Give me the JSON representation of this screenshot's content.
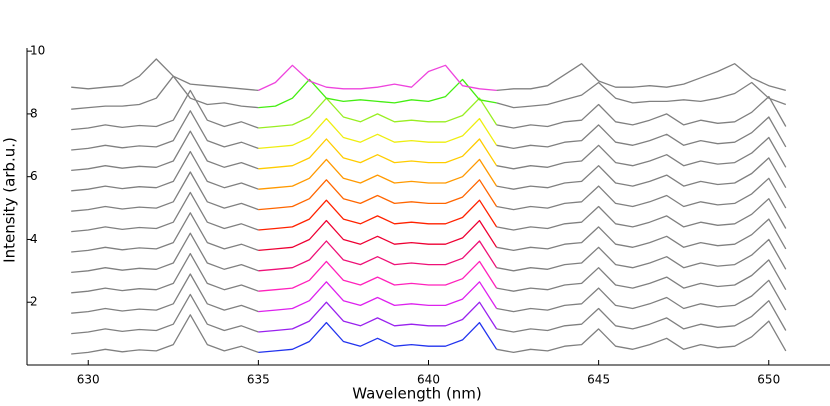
{
  "chart_data": {
    "type": "line",
    "xlabel": "Wavelength (nm)",
    "ylabel": "Intensity (arb.u.)",
    "xlim": [
      628.2,
      651.8
    ],
    "ylim": [
      0,
      10.1
    ],
    "xticks": [
      630,
      635,
      640,
      645,
      650
    ],
    "yticks": [
      2,
      4,
      6,
      8,
      10
    ],
    "highlight_xlim": [
      635,
      642
    ],
    "x": [
      629.5,
      630,
      630.5,
      631,
      631.5,
      632,
      632.5,
      633,
      633.5,
      634,
      634.5,
      635,
      635.5,
      636,
      636.5,
      637,
      637.5,
      638,
      638.5,
      639,
      639.5,
      640,
      640.5,
      641,
      641.5,
      642,
      642.5,
      643,
      643.5,
      644,
      644.5,
      645,
      645.5,
      646,
      646.5,
      647,
      647.5,
      648,
      648.5,
      649,
      649.5,
      650,
      650.5
    ],
    "series": [
      {
        "color": "#808080",
        "highlight_color": "#2233ee",
        "values": [
          0.35,
          0.4,
          0.5,
          0.42,
          0.48,
          0.45,
          0.65,
          1.6,
          0.65,
          0.45,
          0.6,
          0.4,
          0.45,
          0.5,
          0.75,
          1.35,
          0.75,
          0.6,
          0.85,
          0.6,
          0.65,
          0.6,
          0.6,
          0.8,
          1.35,
          0.5,
          0.4,
          0.5,
          0.45,
          0.6,
          0.65,
          1.15,
          0.6,
          0.5,
          0.65,
          0.85,
          0.5,
          0.65,
          0.55,
          0.6,
          0.9,
          1.4,
          0.45
        ]
      },
      {
        "color": "#808080",
        "highlight_color": "#9922ee",
        "values": [
          1.0,
          1.05,
          1.15,
          1.07,
          1.13,
          1.1,
          1.3,
          2.25,
          1.3,
          1.1,
          1.25,
          1.05,
          1.1,
          1.15,
          1.4,
          2.0,
          1.4,
          1.25,
          1.5,
          1.25,
          1.3,
          1.25,
          1.25,
          1.45,
          2.0,
          1.15,
          1.05,
          1.15,
          1.1,
          1.25,
          1.3,
          1.8,
          1.25,
          1.15,
          1.3,
          1.5,
          1.15,
          1.3,
          1.2,
          1.25,
          1.55,
          2.05,
          1.1
        ]
      },
      {
        "color": "#808080",
        "highlight_color": "#dd22ee",
        "values": [
          1.65,
          1.7,
          1.8,
          1.72,
          1.78,
          1.75,
          1.95,
          2.9,
          1.95,
          1.75,
          1.9,
          1.7,
          1.75,
          1.8,
          2.05,
          2.65,
          2.05,
          1.9,
          2.15,
          1.9,
          1.95,
          1.9,
          1.9,
          2.1,
          2.65,
          1.8,
          1.7,
          1.8,
          1.75,
          1.9,
          1.95,
          2.45,
          1.9,
          1.8,
          1.95,
          2.15,
          1.8,
          1.95,
          1.85,
          1.9,
          2.2,
          2.7,
          1.75
        ]
      },
      {
        "color": "#808080",
        "highlight_color": "#ff22bb",
        "values": [
          2.3,
          2.35,
          2.45,
          2.37,
          2.43,
          2.4,
          2.6,
          3.55,
          2.6,
          2.4,
          2.55,
          2.35,
          2.4,
          2.45,
          2.7,
          3.3,
          2.7,
          2.55,
          2.8,
          2.55,
          2.6,
          2.55,
          2.55,
          2.75,
          3.3,
          2.45,
          2.35,
          2.45,
          2.4,
          2.55,
          2.6,
          3.1,
          2.55,
          2.45,
          2.6,
          2.8,
          2.45,
          2.6,
          2.5,
          2.55,
          2.85,
          3.35,
          2.4
        ]
      },
      {
        "color": "#808080",
        "highlight_color": "#ee1177",
        "values": [
          2.95,
          3.0,
          3.1,
          3.02,
          3.08,
          3.05,
          3.25,
          4.2,
          3.25,
          3.05,
          3.2,
          3.0,
          3.05,
          3.1,
          3.35,
          3.95,
          3.35,
          3.2,
          3.45,
          3.2,
          3.25,
          3.2,
          3.2,
          3.4,
          3.95,
          3.1,
          3.0,
          3.1,
          3.05,
          3.2,
          3.25,
          3.75,
          3.2,
          3.1,
          3.25,
          3.45,
          3.1,
          3.25,
          3.15,
          3.2,
          3.5,
          4.0,
          3.05
        ]
      },
      {
        "color": "#808080",
        "highlight_color": "#ee0033",
        "values": [
          3.6,
          3.65,
          3.75,
          3.67,
          3.73,
          3.7,
          3.9,
          4.85,
          3.9,
          3.7,
          3.85,
          3.65,
          3.7,
          3.75,
          4.0,
          4.6,
          4.0,
          3.85,
          4.1,
          3.85,
          3.9,
          3.85,
          3.85,
          4.05,
          4.6,
          3.75,
          3.65,
          3.75,
          3.7,
          3.85,
          3.9,
          4.4,
          3.85,
          3.75,
          3.9,
          4.1,
          3.75,
          3.9,
          3.8,
          3.85,
          4.15,
          4.65,
          3.7
        ]
      },
      {
        "color": "#808080",
        "highlight_color": "#ff2200",
        "values": [
          4.25,
          4.3,
          4.4,
          4.32,
          4.38,
          4.35,
          4.55,
          5.5,
          4.55,
          4.35,
          4.5,
          4.3,
          4.35,
          4.4,
          4.65,
          5.25,
          4.65,
          4.5,
          4.75,
          4.5,
          4.55,
          4.5,
          4.5,
          4.7,
          5.25,
          4.4,
          4.3,
          4.4,
          4.35,
          4.5,
          4.55,
          5.05,
          4.5,
          4.4,
          4.55,
          4.75,
          4.4,
          4.55,
          4.45,
          4.5,
          4.8,
          5.3,
          4.35
        ]
      },
      {
        "color": "#808080",
        "highlight_color": "#ff6600",
        "values": [
          4.9,
          4.95,
          5.05,
          4.97,
          5.03,
          5.0,
          5.2,
          6.15,
          5.2,
          5.0,
          5.15,
          4.95,
          5.0,
          5.05,
          5.3,
          5.9,
          5.3,
          5.15,
          5.4,
          5.15,
          5.2,
          5.15,
          5.15,
          5.35,
          5.9,
          5.05,
          4.95,
          5.05,
          5.0,
          5.15,
          5.2,
          5.7,
          5.15,
          5.05,
          5.2,
          5.4,
          5.05,
          5.2,
          5.1,
          5.15,
          5.45,
          5.95,
          5.0
        ]
      },
      {
        "color": "#808080",
        "highlight_color": "#ff9900",
        "values": [
          5.55,
          5.6,
          5.7,
          5.62,
          5.68,
          5.65,
          5.85,
          6.8,
          5.85,
          5.65,
          5.8,
          5.6,
          5.65,
          5.7,
          5.95,
          6.55,
          5.95,
          5.8,
          6.05,
          5.8,
          5.85,
          5.8,
          5.8,
          6.0,
          6.55,
          5.7,
          5.6,
          5.7,
          5.65,
          5.8,
          5.85,
          6.35,
          5.8,
          5.7,
          5.85,
          6.05,
          5.7,
          5.85,
          5.75,
          5.8,
          6.1,
          6.6,
          5.65
        ]
      },
      {
        "color": "#808080",
        "highlight_color": "#ffcc00",
        "values": [
          6.2,
          6.25,
          6.35,
          6.27,
          6.33,
          6.3,
          6.5,
          7.45,
          6.5,
          6.3,
          6.45,
          6.25,
          6.3,
          6.35,
          6.6,
          7.2,
          6.6,
          6.45,
          6.7,
          6.45,
          6.5,
          6.45,
          6.45,
          6.65,
          7.2,
          6.35,
          6.25,
          6.35,
          6.3,
          6.45,
          6.5,
          7.0,
          6.45,
          6.35,
          6.5,
          6.7,
          6.35,
          6.5,
          6.4,
          6.45,
          6.75,
          7.25,
          6.3
        ]
      },
      {
        "color": "#808080",
        "highlight_color": "#eeee11",
        "values": [
          6.85,
          6.9,
          7.0,
          6.92,
          6.98,
          6.95,
          7.15,
          8.1,
          7.15,
          6.95,
          7.1,
          6.9,
          6.95,
          7.0,
          7.25,
          7.85,
          7.25,
          7.1,
          7.35,
          7.1,
          7.15,
          7.1,
          7.1,
          7.3,
          7.85,
          7.0,
          6.9,
          7.0,
          6.95,
          7.1,
          7.15,
          7.65,
          7.1,
          7.0,
          7.15,
          7.35,
          7.0,
          7.15,
          7.05,
          7.1,
          7.4,
          7.9,
          6.95
        ]
      },
      {
        "color": "#808080",
        "highlight_color": "#99ee22",
        "values": [
          7.5,
          7.55,
          7.65,
          7.57,
          7.63,
          7.6,
          7.8,
          8.75,
          7.8,
          7.6,
          7.75,
          7.55,
          7.6,
          7.65,
          7.9,
          8.5,
          7.9,
          7.75,
          8.0,
          7.75,
          7.8,
          7.75,
          7.75,
          7.95,
          8.5,
          7.65,
          7.55,
          7.65,
          7.6,
          7.75,
          7.8,
          8.3,
          7.75,
          7.65,
          7.8,
          8.0,
          7.65,
          7.8,
          7.7,
          7.75,
          8.05,
          8.55,
          7.6
        ]
      },
      {
        "color": "#808080",
        "highlight_color": "#44ee11",
        "values": [
          8.15,
          8.2,
          8.25,
          8.25,
          8.3,
          8.5,
          9.2,
          8.5,
          8.3,
          8.35,
          8.25,
          8.2,
          8.25,
          8.5,
          9.1,
          8.5,
          8.4,
          8.45,
          8.4,
          8.35,
          8.45,
          8.4,
          8.55,
          9.1,
          8.45,
          8.35,
          8.2,
          8.25,
          8.3,
          8.45,
          8.6,
          9.0,
          8.5,
          8.35,
          8.4,
          8.4,
          8.45,
          8.4,
          8.5,
          8.65,
          9.0,
          8.5,
          8.3
        ]
      },
      {
        "color": "#808080",
        "highlight_color": "#ee44dd",
        "values": [
          8.85,
          8.8,
          8.85,
          8.9,
          9.2,
          9.75,
          9.2,
          8.95,
          8.9,
          8.85,
          8.8,
          8.75,
          9.0,
          9.55,
          9.05,
          8.85,
          8.8,
          8.8,
          8.85,
          8.95,
          8.85,
          9.35,
          9.55,
          8.9,
          8.8,
          8.75,
          8.8,
          8.8,
          8.9,
          9.25,
          9.6,
          9.05,
          8.85,
          8.85,
          8.9,
          8.85,
          8.95,
          9.15,
          9.35,
          9.6,
          9.15,
          8.9,
          8.75
        ]
      }
    ]
  }
}
